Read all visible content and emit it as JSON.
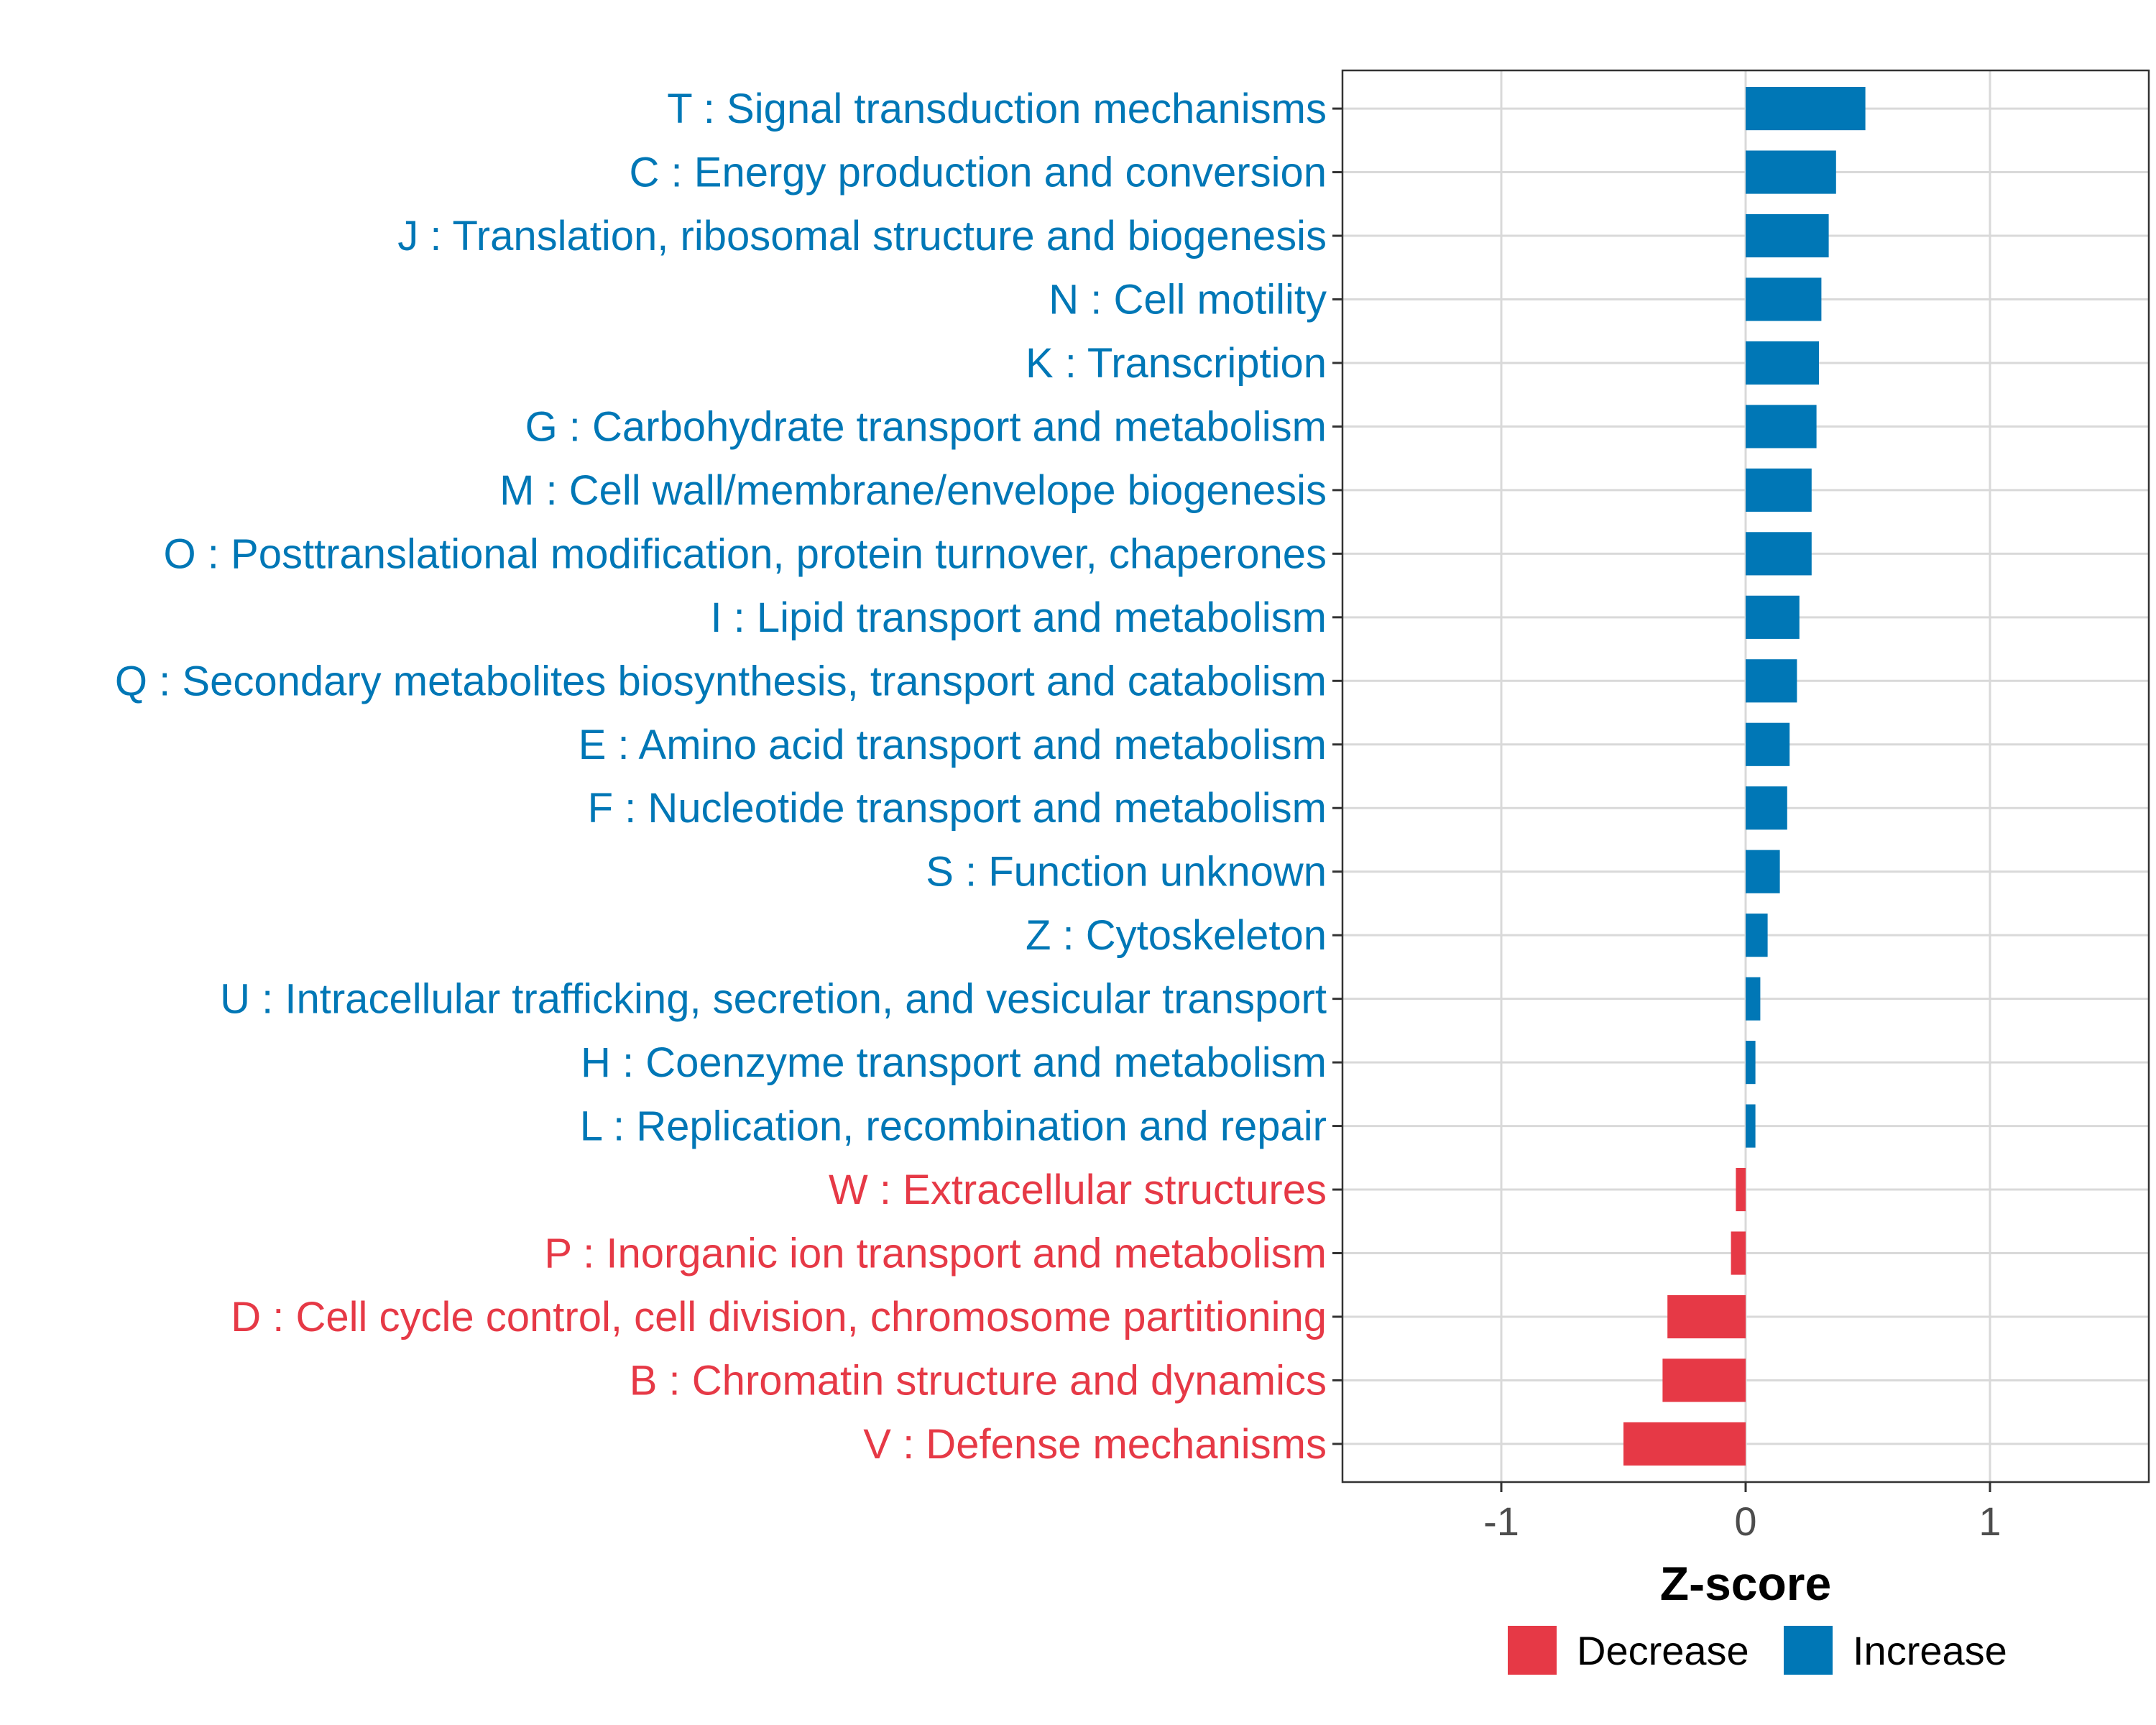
{
  "chart_data": {
    "type": "bar",
    "orientation": "horizontal",
    "title": "",
    "xlabel": "Z-score",
    "ylabel": "",
    "xlim": [
      -1.65,
      1.65
    ],
    "xticks": [
      -1,
      0,
      1
    ],
    "xtick_labels": [
      "-1",
      "0",
      "1"
    ],
    "grid": true,
    "legend_position": "bottom",
    "colors": {
      "Decrease": "#E63946",
      "Increase": "#0077B6"
    },
    "legend": [
      {
        "name": "Decrease",
        "color": "#E63946"
      },
      {
        "name": "Increase",
        "color": "#0077B6"
      }
    ],
    "categories": [
      "T : Signal transduction mechanisms",
      "C : Energy production and conversion",
      "J : Translation, ribosomal structure and biogenesis",
      "N : Cell motility",
      "K : Transcription",
      "G : Carbohydrate transport and metabolism",
      "M : Cell wall/membrane/envelope biogenesis",
      "O : Posttranslational modification, protein turnover, chaperones",
      "I : Lipid transport and metabolism",
      "Q : Secondary metabolites biosynthesis, transport and catabolism",
      "E : Amino acid transport and metabolism",
      "F : Nucleotide transport and metabolism",
      "S : Function unknown",
      "Z : Cytoskeleton",
      "U : Intracellular trafficking, secretion, and vesicular transport",
      "H : Coenzyme transport and metabolism",
      "L : Replication, recombination and repair",
      "W : Extracellular structures",
      "P : Inorganic ion transport and metabolism",
      "D : Cell cycle control, cell division, chromosome partitioning",
      "B : Chromatin structure and dynamics",
      "V : Defense mechanisms"
    ],
    "values": [
      0.49,
      0.37,
      0.34,
      0.31,
      0.3,
      0.29,
      0.27,
      0.27,
      0.22,
      0.21,
      0.18,
      0.17,
      0.14,
      0.09,
      0.06,
      0.04,
      0.04,
      -0.04,
      -0.06,
      -0.32,
      -0.34,
      -0.5
    ],
    "groups": [
      "Increase",
      "Increase",
      "Increase",
      "Increase",
      "Increase",
      "Increase",
      "Increase",
      "Increase",
      "Increase",
      "Increase",
      "Increase",
      "Increase",
      "Increase",
      "Increase",
      "Increase",
      "Increase",
      "Increase",
      "Decrease",
      "Decrease",
      "Decrease",
      "Decrease",
      "Decrease"
    ]
  }
}
